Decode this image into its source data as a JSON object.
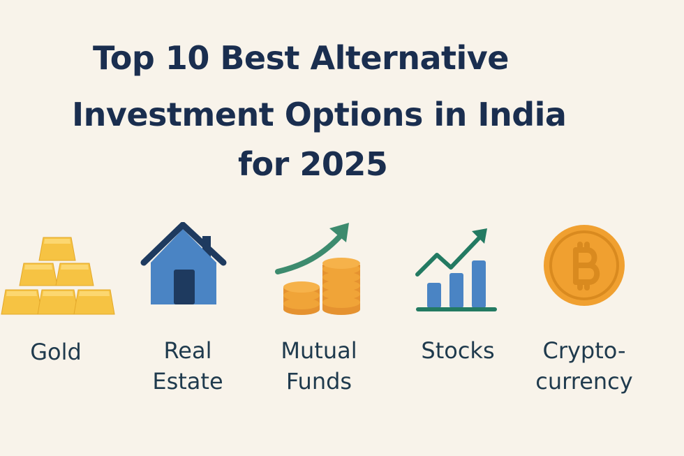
{
  "title": {
    "line1": "Top 10 Best Alternative",
    "line2": "Investment Options in India",
    "line3": "for 2025"
  },
  "items": [
    {
      "icon": "gold-bars-icon",
      "label_lines": [
        "Gold"
      ]
    },
    {
      "icon": "house-icon",
      "label_lines": [
        "Real",
        "Estate"
      ]
    },
    {
      "icon": "coins-growth-arrow-icon",
      "label_lines": [
        "Mutual",
        "Funds"
      ]
    },
    {
      "icon": "bar-chart-trend-icon",
      "label_lines": [
        "Stocks"
      ]
    },
    {
      "icon": "bitcoin-coin-icon",
      "label_lines": [
        "Crypto-",
        "currency"
      ]
    }
  ],
  "colors": {
    "background": "#f8f3ea",
    "title_text": "#1a2e4f",
    "label_text": "#1f3a4d",
    "gold": "#f6c343",
    "house_blue": "#4a84c4",
    "navy": "#1e3a5f",
    "coin_orange": "#f0a438",
    "arrow_green": "#3d8b6e",
    "stock_green": "#237a62",
    "bitcoin_orange": "#f0a030"
  }
}
